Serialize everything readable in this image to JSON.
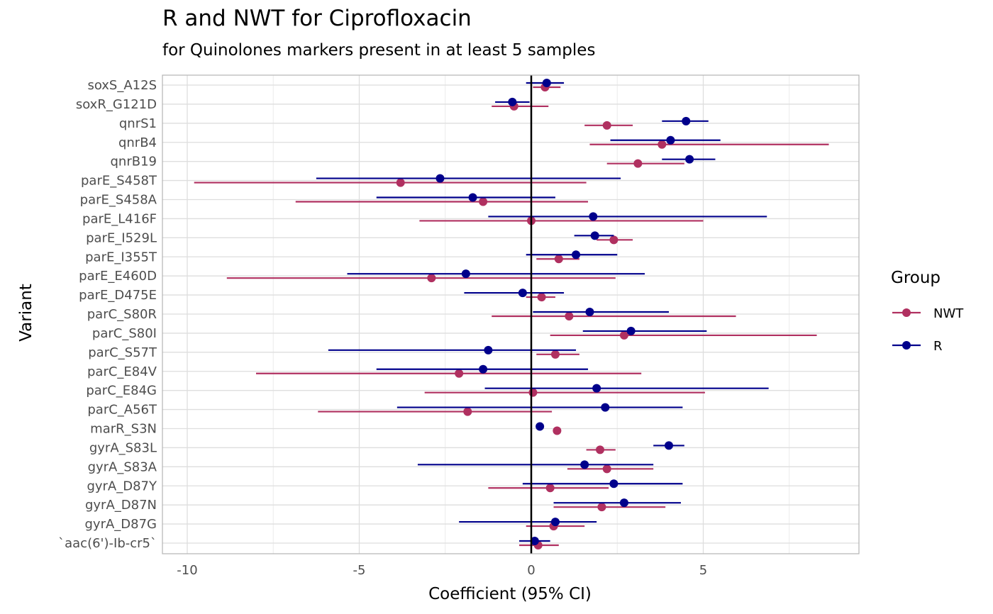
{
  "chart_data": {
    "type": "scatter",
    "subtype": "forest-plot",
    "title": "R and NWT for Ciprofloxacin",
    "subtitle": "for Quinolones markers present in at least 5 samples",
    "xlabel": "Coefficient (95% CI)",
    "ylabel": "Variant",
    "xlim": [
      -10.7,
      9.5
    ],
    "xticks": [
      -10,
      -5,
      0,
      5
    ],
    "xtick_labels": [
      "-10",
      "-5",
      "0",
      "5"
    ],
    "reference_line_x": 0,
    "grid": true,
    "legend": {
      "title": "Group",
      "position": "right",
      "entries": [
        "NWT",
        "R"
      ]
    },
    "colors": {
      "NWT": "#b03060",
      "R": "#00008b"
    },
    "categories": [
      "soxS_A12S",
      "soxR_G121D",
      "qnrS1",
      "qnrB4",
      "qnrB19",
      "parE_S458T",
      "parE_S458A",
      "parE_L416F",
      "parE_I529L",
      "parE_I355T",
      "parE_E460D",
      "parE_D475E",
      "parC_S80R",
      "parC_S80I",
      "parC_S57T",
      "parC_E84V",
      "parC_E84G",
      "parC_A56T",
      "marR_S3N",
      "gyrA_S83L",
      "gyrA_S83A",
      "gyrA_D87Y",
      "gyrA_D87N",
      "gyrA_D87G",
      "`aac(6')-Ib-cr5`"
    ],
    "series": [
      {
        "name": "NWT",
        "estimate": [
          0.4,
          -0.5,
          2.2,
          3.8,
          3.1,
          -3.8,
          -1.4,
          0.0,
          2.4,
          0.8,
          -2.9,
          0.3,
          1.1,
          2.7,
          0.7,
          -2.1,
          0.05,
          -1.85,
          0.75,
          2.0,
          2.2,
          0.55,
          2.05,
          0.65,
          0.2
        ],
        "lower": [
          0.05,
          -1.15,
          1.55,
          1.7,
          2.2,
          -9.8,
          -6.85,
          -3.25,
          1.9,
          0.15,
          -8.85,
          -0.15,
          -1.15,
          0.55,
          0.15,
          -8.0,
          -3.1,
          -6.2,
          null,
          1.6,
          1.05,
          -1.25,
          0.65,
          -0.15,
          -0.35
        ],
        "upper": [
          0.85,
          0.5,
          2.95,
          8.65,
          4.45,
          1.6,
          1.65,
          5.0,
          2.95,
          1.4,
          2.45,
          0.7,
          5.95,
          8.3,
          1.4,
          3.2,
          5.05,
          0.6,
          null,
          2.45,
          3.55,
          2.25,
          3.9,
          1.55,
          0.8
        ]
      },
      {
        "name": "R",
        "estimate": [
          0.45,
          -0.55,
          4.5,
          4.05,
          4.6,
          -2.65,
          -1.7,
          1.8,
          1.85,
          1.3,
          -1.9,
          -0.25,
          1.7,
          2.9,
          -1.25,
          -1.4,
          1.9,
          2.15,
          0.25,
          4.0,
          1.55,
          2.4,
          2.7,
          0.7,
          0.1
        ],
        "lower": [
          -0.15,
          -1.05,
          3.8,
          2.3,
          3.8,
          -6.25,
          -4.5,
          -1.25,
          1.25,
          -0.15,
          -5.35,
          -1.95,
          0.05,
          1.5,
          -5.9,
          -4.5,
          -1.35,
          -3.9,
          null,
          3.55,
          -3.3,
          -0.25,
          0.65,
          -2.1,
          -0.35
        ],
        "upper": [
          0.95,
          -0.05,
          5.15,
          5.5,
          5.35,
          2.6,
          0.7,
          6.85,
          2.4,
          2.5,
          3.3,
          0.95,
          4.0,
          5.1,
          1.3,
          1.65,
          6.9,
          4.4,
          null,
          4.45,
          3.55,
          4.4,
          4.35,
          1.9,
          0.55
        ]
      }
    ]
  }
}
